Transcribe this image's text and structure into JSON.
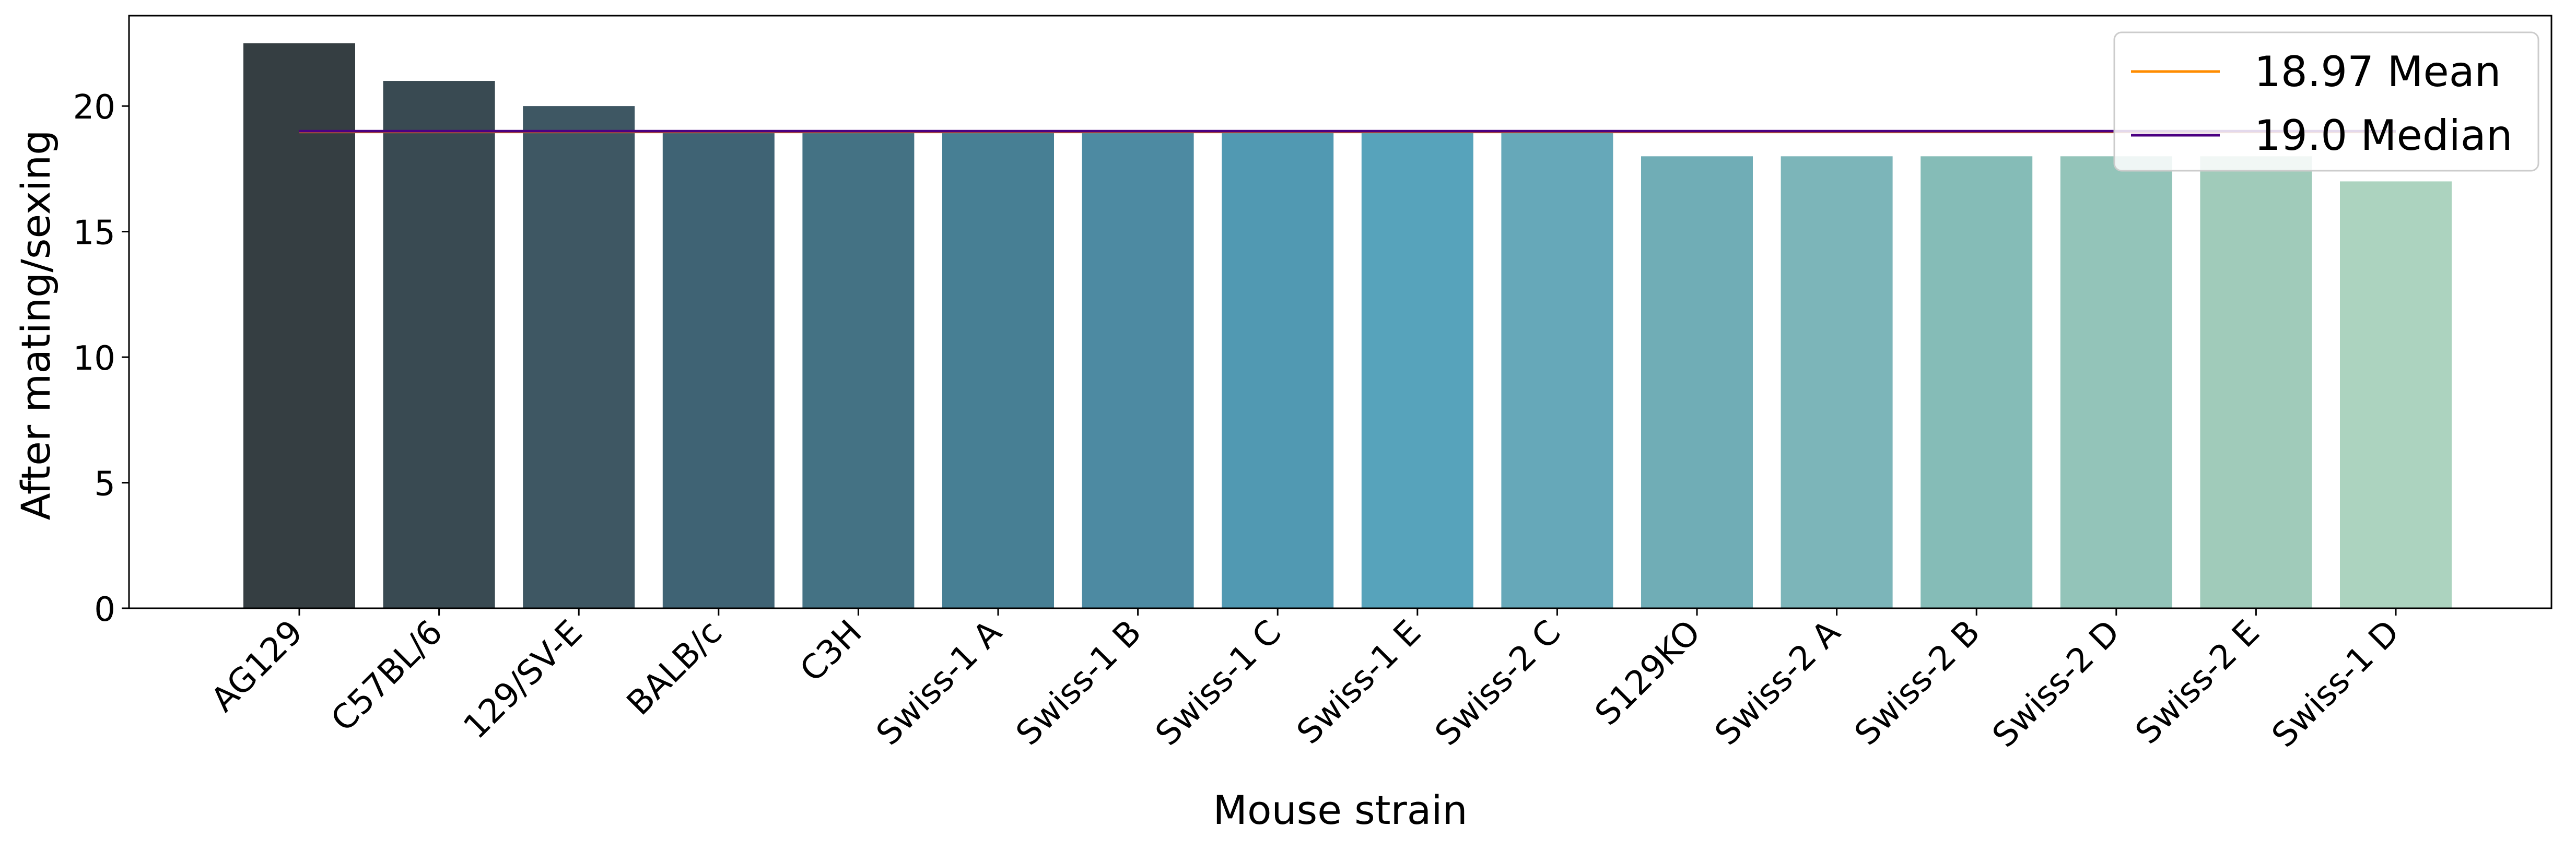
{
  "chart_data": {
    "type": "bar",
    "categories": [
      "AG129",
      "C57BL/6",
      "129/SV-E",
      "BALB/c",
      "C3H",
      "Swiss-1 A",
      "Swiss-1 B",
      "Swiss-1 C",
      "Swiss-1 E",
      "Swiss-2 C",
      "S129KO",
      "Swiss-2 A",
      "Swiss-2 B",
      "Swiss-2 D",
      "Swiss-2 E",
      "Swiss-1 D"
    ],
    "values": [
      22.5,
      21,
      20,
      19,
      19,
      19,
      19,
      19,
      19,
      19,
      18,
      18,
      18,
      18,
      18,
      17
    ],
    "bar_colors": [
      "#353e42",
      "#394a52",
      "#3e5763",
      "#3f6374",
      "#447284",
      "#477f94",
      "#4d8aa2",
      "#5199b2",
      "#57a3bb",
      "#66a8b9",
      "#70adb6",
      "#7cb5b9",
      "#85bcb7",
      "#93c4b9",
      "#a0cbba",
      "#acd3bf"
    ],
    "xlabel": "Mouse strain",
    "ylabel": "After mating/sexing",
    "ylim": [
      0,
      23.6
    ],
    "yticks": [
      0,
      5,
      10,
      15,
      20
    ],
    "grid": false,
    "lines": [
      {
        "name": "18.97 Mean",
        "value": 18.97,
        "color": "#ff8c00"
      },
      {
        "name": "19.0 Median",
        "value": 19.0,
        "color": "#4b0082"
      }
    ],
    "legend_position": "top-right"
  }
}
